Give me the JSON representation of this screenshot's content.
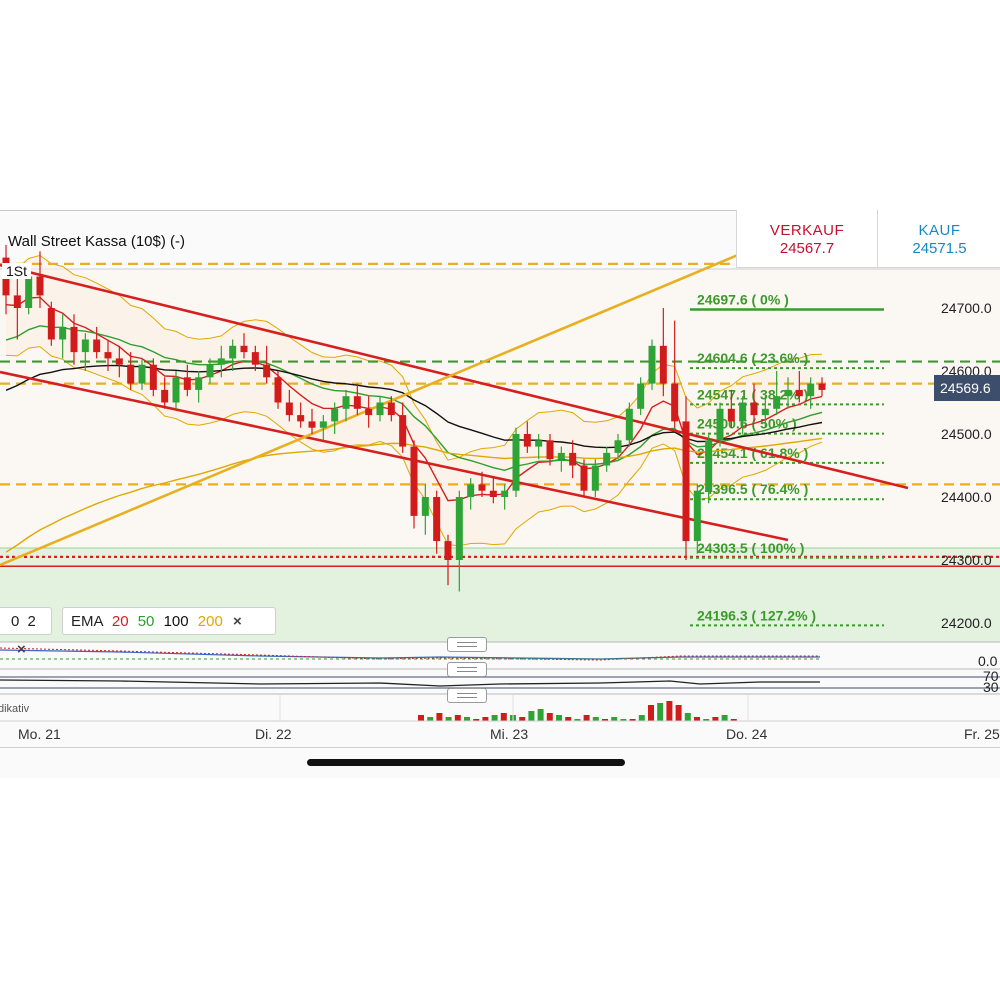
{
  "instrument": {
    "name": "Wall Street Kassa (10$) (-)",
    "timeframe": "1St"
  },
  "quotes": {
    "sell_label": "VERKAUF",
    "sell_value": "24567.7",
    "buy_label": "KAUF",
    "buy_value": "24571.5",
    "sell_color": "#c8102e",
    "buy_color": "#1788c4"
  },
  "current_price": "24569.6",
  "indicators": {
    "bb_fragment": "0",
    "bb_value": "2",
    "ema_label": "EMA",
    "ema_periods": [
      {
        "value": "20",
        "color": "#d62020"
      },
      {
        "value": "50",
        "color": "#2e9e2e"
      },
      {
        "value": "100",
        "color": "#111111"
      },
      {
        "value": "200",
        "color": "#e0a800"
      }
    ],
    "remove_symbol": "×"
  },
  "sub_panels": {
    "osc_zero": "0.0",
    "rsi_70": "70",
    "rsi_30": "30",
    "volume_label_fragment": "dikativ"
  },
  "chart_data": {
    "type": "candlestick",
    "y_axis": {
      "ticks": [
        "24700.0",
        "24600.0",
        "24500.0",
        "24400.0",
        "24300.0",
        "24200.0"
      ],
      "ylim": [
        24170,
        24820
      ]
    },
    "x_axis": {
      "ticks": [
        "Mo. 21",
        "Di. 22",
        "Mi. 23",
        "Do. 24",
        "Fr. 25"
      ]
    },
    "fibonacci_levels": [
      {
        "label": "24697.6 ( 0% )",
        "price": 24697.6
      },
      {
        "label": "24604.6 ( 23.6% )",
        "price": 24604.6
      },
      {
        "label": "24547.1 ( 38.2% )",
        "price": 24547.1
      },
      {
        "label": "24500.6 ( 50% )",
        "price": 24500.6
      },
      {
        "label": "24454.1 ( 61.8% )",
        "price": 24454.1
      },
      {
        "label": "24396.5 ( 76.4% )",
        "price": 24396.5
      },
      {
        "label": "24303.5 ( 100% )",
        "price": 24303.5
      },
      {
        "label": "24196.3 ( 127.2% )",
        "price": 24196.3
      }
    ],
    "horizontal_levels": [
      {
        "price": 24770,
        "color": "#e8b020",
        "style": "dashed"
      },
      {
        "price": 24580,
        "color": "#e8b020",
        "style": "dashed"
      },
      {
        "price": 24420,
        "color": "#e8b020",
        "style": "dashed"
      },
      {
        "price": 24615,
        "color": "#3c9a2c",
        "style": "dashed"
      },
      {
        "price": 24305,
        "color": "#d62020",
        "style": "dotted"
      },
      {
        "price": 24290,
        "color": "#d62020",
        "style": "solid"
      }
    ],
    "candles": [
      [
        24780,
        24800,
        24690,
        24720
      ],
      [
        24720,
        24760,
        24650,
        24700
      ],
      [
        24700,
        24770,
        24690,
        24750
      ],
      [
        24750,
        24790,
        24700,
        24720
      ],
      [
        24700,
        24710,
        24640,
        24650
      ],
      [
        24650,
        24690,
        24620,
        24670
      ],
      [
        24670,
        24690,
        24610,
        24630
      ],
      [
        24630,
        24660,
        24600,
        24650
      ],
      [
        24650,
        24670,
        24620,
        24630
      ],
      [
        24630,
        24650,
        24600,
        24620
      ],
      [
        24620,
        24640,
        24590,
        24610
      ],
      [
        24610,
        24630,
        24570,
        24580
      ],
      [
        24580,
        24620,
        24570,
        24610
      ],
      [
        24610,
        24620,
        24560,
        24570
      ],
      [
        24570,
        24590,
        24540,
        24550
      ],
      [
        24550,
        24600,
        24540,
        24590
      ],
      [
        24590,
        24610,
        24560,
        24570
      ],
      [
        24570,
        24600,
        24550,
        24590
      ],
      [
        24590,
        24620,
        24580,
        24610
      ],
      [
        24610,
        24640,
        24590,
        24620
      ],
      [
        24620,
        24650,
        24600,
        24640
      ],
      [
        24640,
        24660,
        24620,
        24630
      ],
      [
        24630,
        24640,
        24600,
        24610
      ],
      [
        24610,
        24640,
        24580,
        24590
      ],
      [
        24590,
        24600,
        24540,
        24550
      ],
      [
        24550,
        24570,
        24520,
        24530
      ],
      [
        24530,
        24550,
        24510,
        24520
      ],
      [
        24520,
        24540,
        24500,
        24510
      ],
      [
        24510,
        24530,
        24490,
        24520
      ],
      [
        24520,
        24550,
        24500,
        24540
      ],
      [
        24540,
        24570,
        24520,
        24560
      ],
      [
        24560,
        24580,
        24530,
        24540
      ],
      [
        24540,
        24560,
        24510,
        24530
      ],
      [
        24530,
        24560,
        24520,
        24550
      ],
      [
        24550,
        24560,
        24520,
        24530
      ],
      [
        24530,
        24550,
        24470,
        24480
      ],
      [
        24480,
        24490,
        24350,
        24370
      ],
      [
        24370,
        24420,
        24340,
        24400
      ],
      [
        24400,
        24410,
        24310,
        24330
      ],
      [
        24330,
        24340,
        24260,
        24300
      ],
      [
        24300,
        24410,
        24250,
        24400
      ],
      [
        24400,
        24430,
        24380,
        24420
      ],
      [
        24420,
        24440,
        24400,
        24410
      ],
      [
        24410,
        24430,
        24390,
        24400
      ],
      [
        24400,
        24420,
        24380,
        24410
      ],
      [
        24410,
        24510,
        24400,
        24500
      ],
      [
        24500,
        24520,
        24470,
        24480
      ],
      [
        24480,
        24500,
        24460,
        24490
      ],
      [
        24490,
        24500,
        24450,
        24460
      ],
      [
        24460,
        24480,
        24440,
        24470
      ],
      [
        24470,
        24490,
        24430,
        24450
      ],
      [
        24450,
        24460,
        24400,
        24410
      ],
      [
        24410,
        24460,
        24400,
        24450
      ],
      [
        24450,
        24480,
        24440,
        24470
      ],
      [
        24470,
        24500,
        24460,
        24490
      ],
      [
        24490,
        24550,
        24480,
        24540
      ],
      [
        24540,
        24590,
        24530,
        24580
      ],
      [
        24580,
        24650,
        24570,
        24640
      ],
      [
        24640,
        24700,
        24560,
        24580
      ],
      [
        24580,
        24680,
        24510,
        24520
      ],
      [
        24520,
        24560,
        24300,
        24330
      ],
      [
        24330,
        24420,
        24310,
        24410
      ],
      [
        24410,
        24500,
        24390,
        24490
      ],
      [
        24490,
        24550,
        24480,
        24540
      ],
      [
        24540,
        24570,
        24510,
        24520
      ],
      [
        24520,
        24560,
        24500,
        24550
      ],
      [
        24550,
        24580,
        24520,
        24530
      ],
      [
        24530,
        24560,
        24510,
        24540
      ],
      [
        24540,
        24600,
        24530,
        24560
      ],
      [
        24560,
        24590,
        24540,
        24570
      ],
      [
        24570,
        24600,
        24550,
        24560
      ],
      [
        24560,
        24590,
        24540,
        24580
      ],
      [
        24580,
        24590,
        24560,
        24570
      ]
    ],
    "volumes": [
      3,
      2,
      4,
      2,
      3,
      2,
      1,
      2,
      3,
      4,
      3,
      2,
      5,
      6,
      4,
      3,
      2,
      1,
      3,
      2,
      1,
      2,
      1,
      1,
      3,
      8,
      9,
      10,
      8,
      4,
      2,
      1,
      2,
      3,
      1,
      2,
      3,
      4,
      8,
      9,
      7,
      5,
      4,
      2
    ],
    "volume_colors": [
      "r",
      "g",
      "r",
      "g",
      "r",
      "g",
      "r",
      "r",
      "g",
      "r",
      "g",
      "r",
      "g",
      "g",
      "r",
      "g",
      "r",
      "g",
      "r",
      "g",
      "r",
      "g",
      "g",
      "r",
      "g",
      "r",
      "g",
      "r",
      "r",
      "g",
      "r",
      "g",
      "r",
      "g",
      "r",
      "g",
      "r",
      "g",
      "g",
      "r",
      "r",
      "r",
      "g",
      "r"
    ]
  }
}
